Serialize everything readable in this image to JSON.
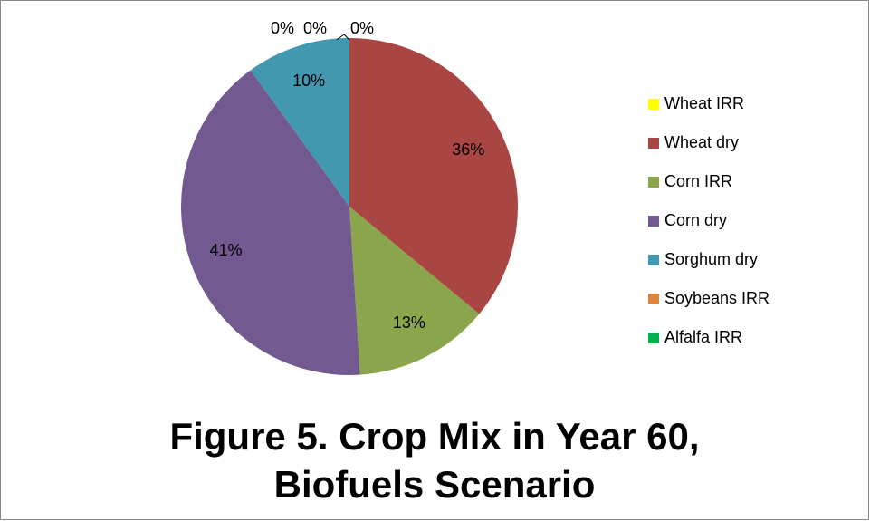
{
  "chart_data": {
    "type": "pie",
    "title": "Figure 5. Crop Mix in Year 60, Biofuels Scenario",
    "categories": [
      "Wheat IRR",
      "Wheat dry",
      "Corn IRR",
      "Corn dry",
      "Sorghum dry",
      "Soybeans IRR",
      "Alfalfa IRR"
    ],
    "values": [
      0,
      36,
      13,
      41,
      10,
      0,
      0
    ],
    "value_labels": [
      "0%",
      "36%",
      "13%",
      "41%",
      "10%",
      "0%",
      "0%"
    ],
    "colors": [
      "#ffff00",
      "#a94643",
      "#8aa54b",
      "#725990",
      "#4298af",
      "#db843d",
      "#00b050"
    ],
    "legend": "right"
  }
}
